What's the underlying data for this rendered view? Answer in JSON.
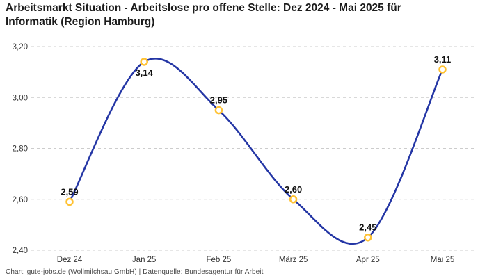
{
  "title": {
    "text": "Arbeitsmarkt Situation - Arbeitslose pro offene Stelle: Dez 2024 - Mai 2025 für Informatik (Region Hamburg)",
    "line1": "Arbeitsmarkt Situation - Arbeitslose pro offene Stelle: Dez 2024 - Mai 2025 für",
    "line2": "Informatik (Region Hamburg)"
  },
  "footer": "Chart: gute-jobs.de (Wollmilchsau GmbH) | Datenquelle: Bundesagentur für Arbeit",
  "colors": {
    "background": "#ffffff",
    "line": "#2436a5",
    "marker_ring": "#ffc233",
    "marker_fill": "#ffffff",
    "grid": "#cccccc",
    "axis_text": "#333333",
    "value_text": "#111111",
    "title_text": "#1c1c1c"
  },
  "chart_data": {
    "type": "line",
    "title": "Arbeitsmarkt Situation - Arbeitslose pro offene Stelle: Dez 2024 - Mai 2025 für Informatik (Region Hamburg)",
    "categories": [
      "Dez 24",
      "Jan 25",
      "Feb 25",
      "März 25",
      "Apr 25",
      "Mai 25"
    ],
    "values": [
      2.59,
      3.14,
      2.95,
      2.6,
      2.45,
      3.11
    ],
    "value_labels": [
      "2,59",
      "3,14",
      "2,95",
      "2,60",
      "2,45",
      "3,11"
    ],
    "value_label_positions": [
      "above",
      "below",
      "above",
      "above",
      "above",
      "above"
    ],
    "y_ticks": [
      {
        "value": 3.2,
        "label": "3,20"
      },
      {
        "value": 3.0,
        "label": "3,00"
      },
      {
        "value": 2.8,
        "label": "2,80"
      },
      {
        "value": 2.6,
        "label": "2,60"
      },
      {
        "value": 2.4,
        "label": "2,40"
      }
    ],
    "ylim": [
      2.4,
      3.2
    ],
    "xlabel": "",
    "ylabel": "",
    "grid": "horizontal-dashed",
    "legend": "none",
    "curve": "smooth-spline",
    "marker": "open-circle"
  }
}
